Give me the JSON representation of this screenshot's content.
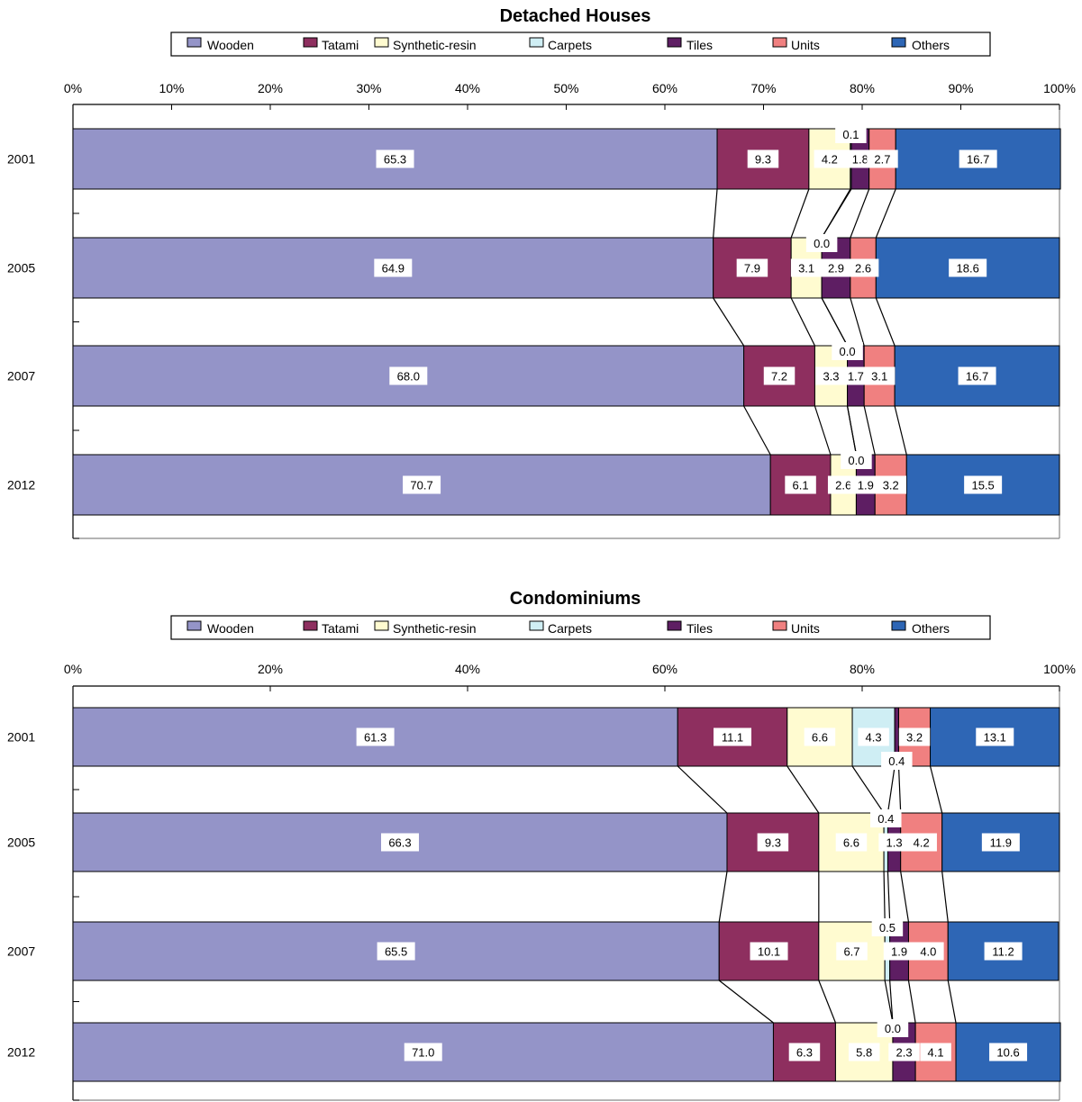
{
  "chart_data": [
    {
      "type": "bar",
      "orientation": "horizontal",
      "stacked": "percent",
      "title": "Detached Houses",
      "categories": [
        "2001",
        "2005",
        "2007",
        "2012"
      ],
      "tick_labels": [
        "0%",
        "10%",
        "20%",
        "30%",
        "40%",
        "50%",
        "60%",
        "70%",
        "80%",
        "90%",
        "100%"
      ],
      "xlim": [
        0,
        100
      ],
      "legend_position": "top",
      "series": [
        {
          "name": "Wooden",
          "color": "#9494C8",
          "values": [
            65.3,
            64.9,
            68.0,
            70.7
          ]
        },
        {
          "name": "Tatami",
          "color": "#8E2F5F",
          "values": [
            9.3,
            7.9,
            7.2,
            6.1
          ]
        },
        {
          "name": "Synthetic-resin",
          "color": "#FFFBD0",
          "values": [
            4.2,
            3.1,
            3.3,
            2.6
          ]
        },
        {
          "name": "Carpets",
          "color": "#CFEEF4",
          "values": [
            0.1,
            0.0,
            0.0,
            0.0
          ]
        },
        {
          "name": "Tiles",
          "color": "#5E1E63",
          "values": [
            1.8,
            2.9,
            1.7,
            1.9
          ]
        },
        {
          "name": "Units",
          "color": "#F08080",
          "values": [
            2.7,
            2.6,
            3.1,
            3.2
          ]
        },
        {
          "name": "Others",
          "color": "#2E66B5",
          "values": [
            16.7,
            18.6,
            16.7,
            15.5
          ]
        }
      ]
    },
    {
      "type": "bar",
      "orientation": "horizontal",
      "stacked": "percent",
      "title": "Condominiums",
      "categories": [
        "2001",
        "2005",
        "2007",
        "2012"
      ],
      "tick_labels": [
        "0%",
        "20%",
        "40%",
        "60%",
        "80%",
        "100%"
      ],
      "xlim": [
        0,
        100
      ],
      "legend_position": "top",
      "series": [
        {
          "name": "Wooden",
          "color": "#9494C8",
          "values": [
            61.3,
            66.3,
            65.5,
            71.0
          ]
        },
        {
          "name": "Tatami",
          "color": "#8E2F5F",
          "values": [
            11.1,
            9.3,
            10.1,
            6.3
          ]
        },
        {
          "name": "Synthetic-resin",
          "color": "#FFFBD0",
          "values": [
            6.6,
            6.6,
            6.7,
            5.8
          ]
        },
        {
          "name": "Carpets",
          "color": "#CFEEF4",
          "values": [
            4.3,
            0.4,
            0.5,
            0.0
          ]
        },
        {
          "name": "Tiles",
          "color": "#5E1E63",
          "values": [
            0.4,
            1.3,
            1.9,
            2.3
          ]
        },
        {
          "name": "Units",
          "color": "#F08080",
          "values": [
            3.2,
            4.2,
            4.0,
            4.1
          ]
        },
        {
          "name": "Others",
          "color": "#2E66B5",
          "values": [
            13.1,
            11.9,
            11.2,
            10.6
          ]
        }
      ]
    }
  ]
}
